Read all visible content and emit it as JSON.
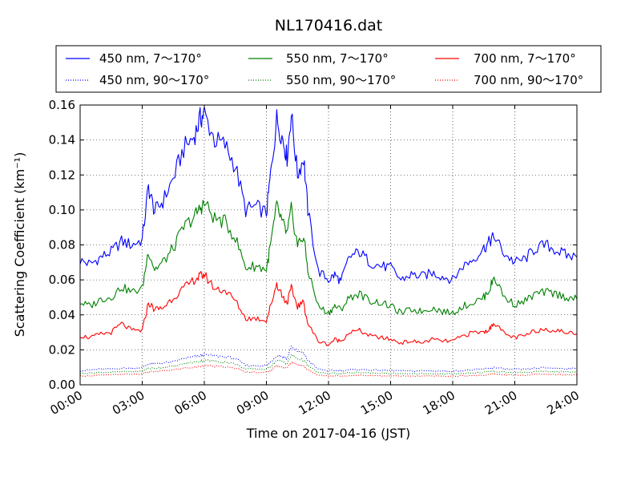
{
  "chart_data": {
    "type": "line",
    "title": "NL170416.dat",
    "xlabel": "Time on 2017-04-16 (JST)",
    "ylabel": "Scattering Coefficient (km⁻¹)",
    "xlim": [
      "00:00",
      "24:00"
    ],
    "ylim": [
      0.0,
      0.16
    ],
    "x_ticks": [
      "00:00",
      "03:00",
      "06:00",
      "09:00",
      "12:00",
      "15:00",
      "18:00",
      "21:00",
      "24:00"
    ],
    "y_ticks": [
      "0.00",
      "0.02",
      "0.04",
      "0.06",
      "0.08",
      "0.10",
      "0.12",
      "0.14",
      "0.16"
    ],
    "grid": true,
    "legend_position": "top",
    "x_hours": [
      0,
      0.5,
      1,
      1.5,
      2,
      2.5,
      3,
      3.3,
      3.6,
      4,
      4.5,
      5,
      5.5,
      5.8,
      6,
      6.5,
      7,
      7.5,
      8,
      8.5,
      9,
      9.2,
      9.5,
      9.8,
      10,
      10.2,
      10.5,
      10.8,
      11,
      11.5,
      12,
      12.3,
      12.6,
      13,
      13.5,
      14,
      14.5,
      15,
      15.5,
      16,
      16.5,
      17,
      17.5,
      18,
      18.5,
      19,
      19.5,
      19.8,
      20,
      20.5,
      21,
      21.5,
      22,
      22.5,
      23,
      23.5,
      24
    ],
    "series": [
      {
        "name": "450 nm, 7～170°",
        "color": "#0000ff",
        "style": "solid",
        "values": [
          0.071,
          0.069,
          0.073,
          0.076,
          0.082,
          0.08,
          0.083,
          0.113,
          0.099,
          0.105,
          0.118,
          0.135,
          0.142,
          0.152,
          0.155,
          0.14,
          0.137,
          0.125,
          0.1,
          0.102,
          0.098,
          0.12,
          0.152,
          0.14,
          0.13,
          0.155,
          0.12,
          0.13,
          0.1,
          0.065,
          0.06,
          0.063,
          0.059,
          0.073,
          0.076,
          0.07,
          0.068,
          0.067,
          0.06,
          0.063,
          0.062,
          0.064,
          0.062,
          0.06,
          0.068,
          0.072,
          0.078,
          0.082,
          0.085,
          0.075,
          0.07,
          0.072,
          0.078,
          0.08,
          0.077,
          0.074,
          0.073
        ]
      },
      {
        "name": "450 nm, 90～170°",
        "color": "#0000ff",
        "style": "dotted",
        "values": [
          0.008,
          0.0085,
          0.009,
          0.009,
          0.0095,
          0.0095,
          0.0098,
          0.012,
          0.012,
          0.0125,
          0.013,
          0.015,
          0.016,
          0.0165,
          0.017,
          0.0165,
          0.016,
          0.015,
          0.011,
          0.011,
          0.011,
          0.013,
          0.017,
          0.016,
          0.015,
          0.022,
          0.019,
          0.018,
          0.014,
          0.009,
          0.008,
          0.0082,
          0.008,
          0.0085,
          0.0088,
          0.0085,
          0.0083,
          0.0082,
          0.008,
          0.0078,
          0.008,
          0.008,
          0.0078,
          0.0078,
          0.0082,
          0.0085,
          0.009,
          0.0095,
          0.0098,
          0.009,
          0.0088,
          0.0088,
          0.0095,
          0.0097,
          0.0095,
          0.0093,
          0.0092
        ]
      },
      {
        "name": "550 nm, 7～170°",
        "color": "#008000",
        "style": "solid",
        "values": [
          0.047,
          0.045,
          0.049,
          0.05,
          0.056,
          0.053,
          0.055,
          0.077,
          0.066,
          0.07,
          0.078,
          0.09,
          0.096,
          0.101,
          0.104,
          0.095,
          0.093,
          0.084,
          0.067,
          0.068,
          0.066,
          0.08,
          0.102,
          0.092,
          0.086,
          0.1,
          0.08,
          0.085,
          0.066,
          0.045,
          0.041,
          0.045,
          0.043,
          0.05,
          0.052,
          0.048,
          0.047,
          0.045,
          0.041,
          0.043,
          0.042,
          0.044,
          0.042,
          0.041,
          0.045,
          0.047,
          0.05,
          0.055,
          0.062,
          0.05,
          0.046,
          0.048,
          0.052,
          0.053,
          0.052,
          0.05,
          0.049
        ]
      },
      {
        "name": "550 nm, 90～170°",
        "color": "#008000",
        "style": "dotted",
        "values": [
          0.0065,
          0.0068,
          0.007,
          0.0072,
          0.0075,
          0.0075,
          0.0078,
          0.0095,
          0.0095,
          0.01,
          0.0105,
          0.012,
          0.013,
          0.0135,
          0.014,
          0.0135,
          0.013,
          0.012,
          0.009,
          0.009,
          0.009,
          0.0105,
          0.014,
          0.013,
          0.012,
          0.017,
          0.015,
          0.014,
          0.011,
          0.007,
          0.0065,
          0.0066,
          0.0064,
          0.0068,
          0.007,
          0.0068,
          0.0066,
          0.0065,
          0.0063,
          0.0062,
          0.0064,
          0.0064,
          0.0062,
          0.0062,
          0.0065,
          0.0068,
          0.0072,
          0.0076,
          0.0078,
          0.0072,
          0.007,
          0.007,
          0.0075,
          0.0077,
          0.0075,
          0.0074,
          0.0073
        ]
      },
      {
        "name": "700 nm, 7～170°",
        "color": "#ff0000",
        "style": "solid",
        "values": [
          0.028,
          0.027,
          0.029,
          0.03,
          0.035,
          0.031,
          0.031,
          0.047,
          0.043,
          0.044,
          0.05,
          0.055,
          0.06,
          0.062,
          0.063,
          0.055,
          0.054,
          0.048,
          0.038,
          0.038,
          0.037,
          0.045,
          0.058,
          0.05,
          0.047,
          0.055,
          0.045,
          0.047,
          0.035,
          0.025,
          0.023,
          0.026,
          0.025,
          0.03,
          0.031,
          0.028,
          0.027,
          0.026,
          0.024,
          0.025,
          0.024,
          0.026,
          0.025,
          0.025,
          0.028,
          0.03,
          0.03,
          0.032,
          0.036,
          0.029,
          0.027,
          0.028,
          0.031,
          0.032,
          0.031,
          0.03,
          0.029
        ]
      },
      {
        "name": "700 nm, 90～170°",
        "color": "#ff0000",
        "style": "dotted",
        "values": [
          0.005,
          0.0052,
          0.0055,
          0.0057,
          0.006,
          0.006,
          0.0062,
          0.0075,
          0.0075,
          0.008,
          0.0085,
          0.0095,
          0.01,
          0.0105,
          0.011,
          0.0105,
          0.0102,
          0.0095,
          0.0072,
          0.0072,
          0.0072,
          0.0083,
          0.011,
          0.0102,
          0.0095,
          0.013,
          0.0115,
          0.011,
          0.0085,
          0.0055,
          0.005,
          0.0052,
          0.005,
          0.0053,
          0.0055,
          0.0053,
          0.0052,
          0.0051,
          0.005,
          0.0049,
          0.005,
          0.005,
          0.0049,
          0.0049,
          0.0051,
          0.0053,
          0.0056,
          0.006,
          0.0062,
          0.0057,
          0.0055,
          0.0055,
          0.0059,
          0.006,
          0.0059,
          0.0058,
          0.0057
        ]
      }
    ]
  }
}
